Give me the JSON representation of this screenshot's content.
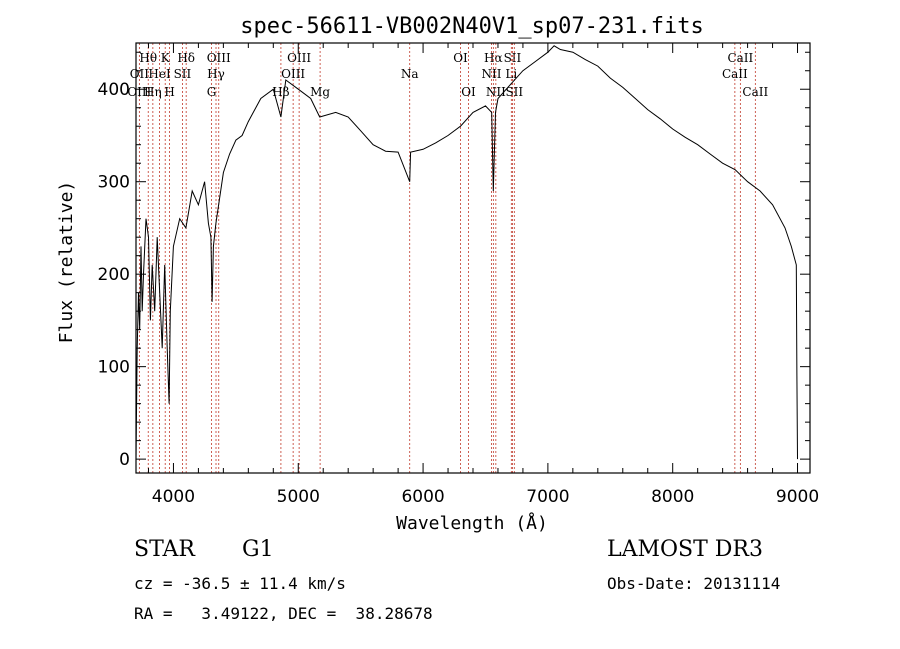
{
  "chart_data": {
    "type": "line",
    "title": "spec-56611-VB002N40V1_sp07-231.fits",
    "xlabel": "Wavelength (Å)",
    "ylabel": "Flux (relative)",
    "xlim": [
      3700,
      9100
    ],
    "ylim": [
      -15,
      450
    ],
    "xticks": [
      {
        "value": 4000,
        "label": "4000"
      },
      {
        "value": 5000,
        "label": "5000"
      },
      {
        "value": 6000,
        "label": "6000"
      },
      {
        "value": 7000,
        "label": "7000"
      },
      {
        "value": 8000,
        "label": "8000"
      },
      {
        "value": 9000,
        "label": "9000"
      }
    ],
    "yticks": [
      {
        "value": 0,
        "label": "0"
      },
      {
        "value": 100,
        "label": "100"
      },
      {
        "value": 200,
        "label": "200"
      },
      {
        "value": 300,
        "label": "300"
      },
      {
        "value": 400,
        "label": "400"
      }
    ],
    "series": [
      {
        "name": "flux",
        "points": [
          [
            3700,
            0
          ],
          [
            3710,
            120
          ],
          [
            3720,
            180
          ],
          [
            3730,
            140
          ],
          [
            3740,
            230
          ],
          [
            3750,
            160
          ],
          [
            3760,
            200
          ],
          [
            3780,
            260
          ],
          [
            3800,
            240
          ],
          [
            3815,
            150
          ],
          [
            3830,
            210
          ],
          [
            3850,
            160
          ],
          [
            3870,
            240
          ],
          [
            3890,
            180
          ],
          [
            3910,
            120
          ],
          [
            3930,
            210
          ],
          [
            3950,
            120
          ],
          [
            3965,
            60
          ],
          [
            3975,
            160
          ],
          [
            4000,
            230
          ],
          [
            4050,
            260
          ],
          [
            4100,
            250
          ],
          [
            4150,
            290
          ],
          [
            4200,
            275
          ],
          [
            4250,
            300
          ],
          [
            4280,
            255
          ],
          [
            4300,
            240
          ],
          [
            4310,
            170
          ],
          [
            4320,
            230
          ],
          [
            4340,
            255
          ],
          [
            4400,
            310
          ],
          [
            4450,
            330
          ],
          [
            4500,
            345
          ],
          [
            4550,
            350
          ],
          [
            4600,
            365
          ],
          [
            4700,
            390
          ],
          [
            4800,
            400
          ],
          [
            4861,
            370
          ],
          [
            4900,
            410
          ],
          [
            5000,
            400
          ],
          [
            5100,
            390
          ],
          [
            5172,
            370
          ],
          [
            5300,
            375
          ],
          [
            5400,
            370
          ],
          [
            5500,
            355
          ],
          [
            5600,
            340
          ],
          [
            5700,
            333
          ],
          [
            5800,
            332
          ],
          [
            5893,
            300
          ],
          [
            5900,
            332
          ],
          [
            6000,
            335
          ],
          [
            6100,
            342
          ],
          [
            6200,
            350
          ],
          [
            6300,
            360
          ],
          [
            6400,
            375
          ],
          [
            6500,
            382
          ],
          [
            6550,
            375
          ],
          [
            6563,
            290
          ],
          [
            6580,
            375
          ],
          [
            6600,
            390
          ],
          [
            6700,
            405
          ],
          [
            6800,
            420
          ],
          [
            6900,
            430
          ],
          [
            7000,
            440
          ],
          [
            7050,
            447
          ],
          [
            7100,
            443
          ],
          [
            7200,
            440
          ],
          [
            7300,
            432
          ],
          [
            7400,
            425
          ],
          [
            7500,
            412
          ],
          [
            7600,
            402
          ],
          [
            7700,
            390
          ],
          [
            7800,
            378
          ],
          [
            7900,
            368
          ],
          [
            8000,
            357
          ],
          [
            8100,
            348
          ],
          [
            8200,
            340
          ],
          [
            8300,
            330
          ],
          [
            8400,
            320
          ],
          [
            8500,
            313
          ],
          [
            8600,
            300
          ],
          [
            8700,
            290
          ],
          [
            8800,
            275
          ],
          [
            8900,
            250
          ],
          [
            8950,
            230
          ],
          [
            8990,
            210
          ],
          [
            8995,
            90
          ],
          [
            9000,
            0
          ]
        ]
      }
    ],
    "line_markers": [
      {
        "label": "Hθ",
        "wavelength": 3798,
        "row": 1
      },
      {
        "label": "OII",
        "wavelength": 3727,
        "row": 2
      },
      {
        "label": "OIII",
        "wavelength": 3727,
        "row": 3
      },
      {
        "label": "K",
        "wavelength": 3934,
        "row": 1
      },
      {
        "label": "HeI",
        "wavelength": 3889,
        "row": 2
      },
      {
        "label": "Hη",
        "wavelength": 3835,
        "row": 3
      },
      {
        "label": "Hδ",
        "wavelength": 4102,
        "row": 1
      },
      {
        "label": "SII",
        "wavelength": 4072,
        "row": 2
      },
      {
        "label": "H",
        "wavelength": 3969,
        "row": 3
      },
      {
        "label": "OIII",
        "wavelength": 4363,
        "row": 1
      },
      {
        "label": "Hγ",
        "wavelength": 4341,
        "row": 2
      },
      {
        "label": "G",
        "wavelength": 4305,
        "row": 3
      },
      {
        "label": "OIII",
        "wavelength": 5007,
        "row": 1
      },
      {
        "label": "OIII",
        "wavelength": 4959,
        "row": 2
      },
      {
        "label": "Hβ",
        "wavelength": 4861,
        "row": 3
      },
      {
        "label": "Mg",
        "wavelength": 5175,
        "row": 3
      },
      {
        "label": "Na",
        "wavelength": 5893,
        "row": 2
      },
      {
        "label": "OI",
        "wavelength": 6300,
        "row": 1
      },
      {
        "label": "OI",
        "wavelength": 6364,
        "row": 3
      },
      {
        "label": "Hα",
        "wavelength": 6563,
        "row": 1
      },
      {
        "label": "NII",
        "wavelength": 6548,
        "row": 2
      },
      {
        "label": "NII",
        "wavelength": 6583,
        "row": 3
      },
      {
        "label": "SII",
        "wavelength": 6716,
        "row": 1
      },
      {
        "label": "Li",
        "wavelength": 6707,
        "row": 2
      },
      {
        "label": "SII",
        "wavelength": 6731,
        "row": 3
      },
      {
        "label": "CaII",
        "wavelength": 8542,
        "row": 1
      },
      {
        "label": "CaII",
        "wavelength": 8498,
        "row": 2
      },
      {
        "label": "CaII",
        "wavelength": 8662,
        "row": 3
      }
    ]
  },
  "info": {
    "class_label": "STAR",
    "subclass": "G1",
    "survey": "LAMOST DR3",
    "redshift": "cz = -36.5 ± 11.4 km/s",
    "obs_date": "Obs-Date: 20131114",
    "coords": "RA =   3.49122, DEC =  38.28678"
  },
  "colors": {
    "line": "#000000",
    "marker": "#c0392b",
    "axis": "#000000"
  }
}
